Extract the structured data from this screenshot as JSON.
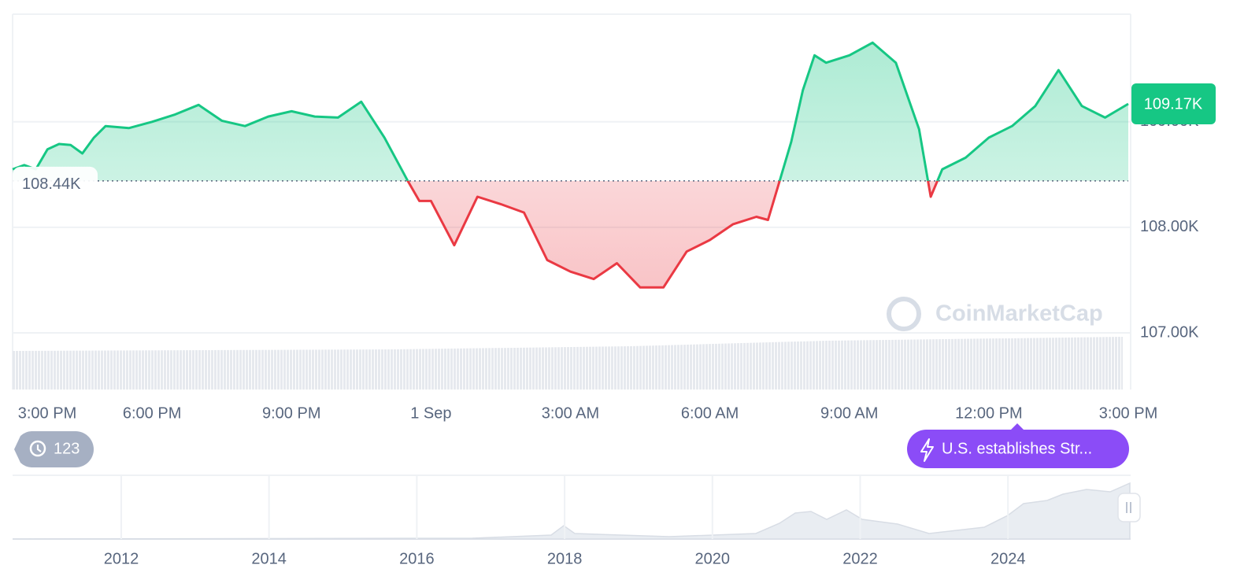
{
  "chart_data": [
    {
      "type": "line",
      "x": [
        0,
        0.25,
        0.5,
        0.75,
        1,
        1.25,
        1.5,
        1.75,
        2,
        2.5,
        3,
        3.5,
        4,
        4.5,
        5,
        5.5,
        6,
        6.5,
        7,
        7.5,
        8,
        8.5,
        8.75,
        9,
        9.5,
        10,
        10.5,
        11,
        11.5,
        12,
        12.5,
        13,
        13.5,
        14,
        14.5,
        15,
        15.5,
        16,
        16.25,
        16.5,
        16.75,
        17,
        17.25,
        17.5,
        18,
        18.5,
        19,
        19.5,
        19.75,
        20,
        20.5,
        21,
        21.5,
        22,
        22.5,
        23,
        23.5,
        24
      ],
      "values": [
        108.55,
        108.59,
        108.55,
        108.74,
        108.79,
        108.78,
        108.7,
        108.85,
        108.96,
        108.94,
        109.0,
        109.07,
        109.16,
        109.01,
        108.96,
        109.05,
        109.1,
        109.05,
        109.04,
        109.19,
        108.85,
        108.44,
        108.25,
        108.25,
        107.83,
        108.29,
        108.22,
        108.14,
        107.69,
        107.58,
        107.51,
        107.66,
        107.43,
        107.43,
        107.77,
        107.88,
        108.03,
        108.1,
        108.07,
        108.44,
        108.81,
        109.3,
        109.63,
        109.56,
        109.63,
        109.75,
        109.56,
        108.93,
        108.29,
        108.55,
        108.66,
        108.85,
        108.96,
        109.15,
        109.49,
        109.15,
        109.04,
        109.17
      ],
      "up_color": "#16c784",
      "down_color": "#ea3943",
      "xlim": [
        0,
        24
      ],
      "xticks": [
        {
          "value": 0,
          "label": "3:00 PM"
        },
        {
          "value": 3,
          "label": "6:00 PM"
        },
        {
          "value": 6,
          "label": "9:00 PM"
        },
        {
          "value": 9,
          "label": "1 Sep"
        },
        {
          "value": 12,
          "label": "3:00 AM"
        },
        {
          "value": 15,
          "label": "6:00 AM"
        },
        {
          "value": 18,
          "label": "9:00 AM"
        },
        {
          "value": 21,
          "label": "12:00 PM"
        },
        {
          "value": 24,
          "label": "3:00 PM"
        }
      ],
      "ylim": [
        107,
        110.02
      ],
      "yticks": [
        {
          "value": 107,
          "label": "107.00K"
        },
        {
          "value": 108,
          "label": "108.00K"
        },
        {
          "value": 109,
          "label": "109.00K"
        }
      ],
      "grid": true,
      "baseline": {
        "value": 108.44,
        "label": "108.44K"
      },
      "last_price": {
        "value": 109.17,
        "label": "109.17K"
      }
    },
    {
      "type": "navigator",
      "xlim": [
        2010.53,
        2025.66
      ],
      "xticks": [
        2012,
        2014,
        2016,
        2018,
        2020,
        2022,
        2024
      ],
      "grid": true
    }
  ],
  "history_badge": 123,
  "event": "U.S. establishes Str...",
  "watermark": "CoinMarketCap"
}
